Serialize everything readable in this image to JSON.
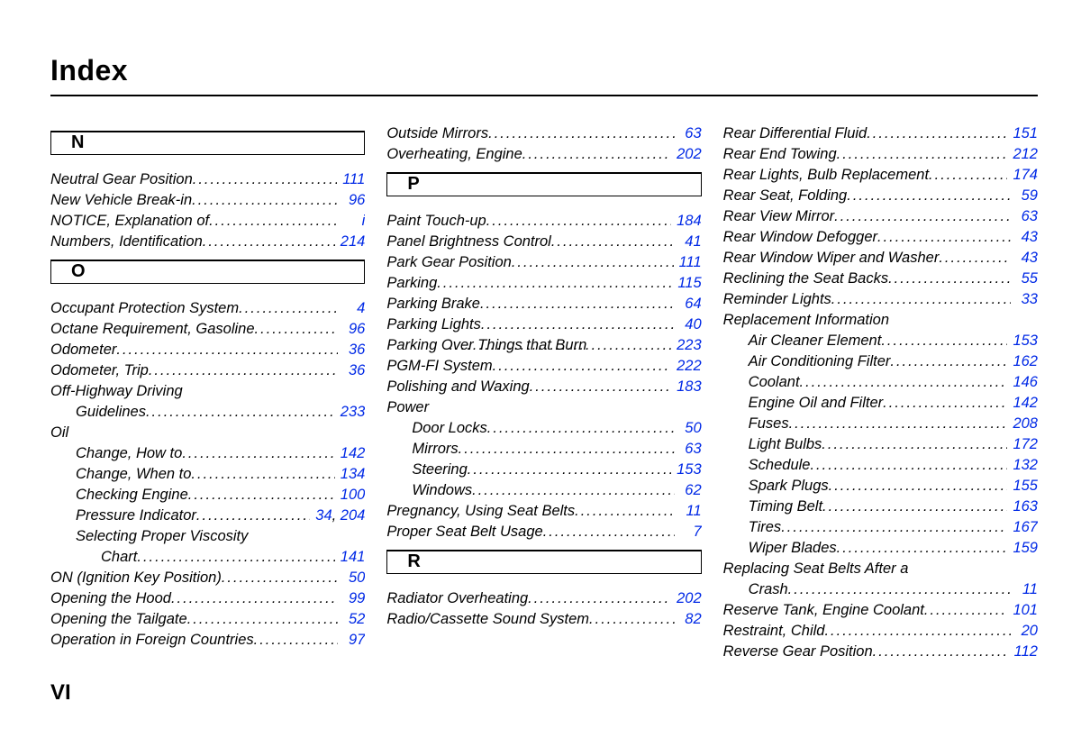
{
  "title": "Index",
  "page_footer": "VI",
  "link_color": "#0029e6",
  "text_color": "#000000",
  "font_family": "Arial",
  "font_italic": true,
  "columns_count": 3,
  "columns": [
    {
      "blocks": [
        {
          "type": "letter",
          "text": "N"
        },
        {
          "type": "entries",
          "items": [
            {
              "label": "Neutral Gear Position",
              "pages": [
                "111"
              ]
            },
            {
              "label": "New Vehicle Break-in ",
              "pages": [
                "96"
              ]
            },
            {
              "label": "NOTICE, Explanation of",
              "pages": [
                "i"
              ]
            },
            {
              "label": "Numbers, Identification",
              "pages": [
                "214"
              ]
            }
          ]
        },
        {
          "type": "letter",
          "text": "O"
        },
        {
          "type": "entries",
          "items": [
            {
              "label": "Occupant Protection System",
              "pages": [
                "4"
              ]
            },
            {
              "label": "Octane Requirement, Gasoline",
              "pages": [
                "96"
              ]
            },
            {
              "label": "Odometer",
              "pages": [
                "36"
              ]
            },
            {
              "label": "Odometer, Trip",
              "pages": [
                "36"
              ]
            },
            {
              "label": "Off-Highway Driving",
              "nopage": true
            },
            {
              "label": "Guidelines",
              "indent": 1,
              "pages": [
                "233"
              ]
            },
            {
              "label": "Oil",
              "nopage": true
            },
            {
              "label": "Change, How to",
              "indent": 1,
              "pages": [
                "142"
              ]
            },
            {
              "label": "Change, When to",
              "indent": 1,
              "pages": [
                "134"
              ]
            },
            {
              "label": "Checking Engine",
              "indent": 1,
              "pages": [
                "100"
              ]
            },
            {
              "label": "Pressure Indicator",
              "indent": 1,
              "pages": [
                "34",
                "204"
              ]
            },
            {
              "label": "Selecting Proper Viscosity",
              "indent": 1,
              "nopage": true
            },
            {
              "label": "Chart",
              "indent": 2,
              "pages": [
                "141"
              ]
            },
            {
              "label": "ON (Ignition Key Position)",
              "pages": [
                "50"
              ]
            },
            {
              "label": "Opening the Hood ",
              "pages": [
                "99"
              ]
            },
            {
              "label": "Opening the Tailgate",
              "pages": [
                "52"
              ]
            },
            {
              "label": "Operation in Foreign Countries",
              "pages": [
                "97"
              ]
            }
          ]
        }
      ]
    },
    {
      "blocks": [
        {
          "type": "entries",
          "items": [
            {
              "label": "Outside Mirrors",
              "pages": [
                "63"
              ]
            },
            {
              "label": "Overheating, Engine",
              "pages": [
                "202"
              ]
            }
          ]
        },
        {
          "type": "letter",
          "text": "P"
        },
        {
          "type": "entries",
          "items": [
            {
              "label": "Paint Touch-up",
              "pages": [
                "184"
              ]
            },
            {
              "label": "Panel Brightness Control",
              "pages": [
                "41"
              ]
            },
            {
              "label": "Park Gear Position",
              "pages": [
                "111"
              ]
            },
            {
              "label": "Parking",
              "pages": [
                "115"
              ]
            },
            {
              "label": "Parking Brake",
              "pages": [
                "64"
              ]
            },
            {
              "label": "Parking Lights",
              "pages": [
                "40"
              ]
            },
            {
              "label": "Parking Over Things that Burn",
              "trunc": true,
              "pages": [
                "223"
              ]
            },
            {
              "label": "PGM-FI System",
              "pages": [
                "222"
              ]
            },
            {
              "label": "Polishing and Waxing",
              "pages": [
                "183"
              ]
            },
            {
              "label": "Power",
              "nopage": true
            },
            {
              "label": "Door Locks",
              "indent": 1,
              "pages": [
                "50"
              ]
            },
            {
              "label": "Mirrors",
              "indent": 1,
              "pages": [
                "63"
              ]
            },
            {
              "label": "Steering",
              "indent": 1,
              "pages": [
                "153"
              ]
            },
            {
              "label": "Windows",
              "indent": 1,
              "pages": [
                "62"
              ]
            },
            {
              "label": "Pregnancy, Using Seat Belts",
              "pages": [
                "11"
              ]
            },
            {
              "label": "Proper Seat Belt Usage",
              "pages": [
                "7"
              ]
            }
          ]
        },
        {
          "type": "letter",
          "text": "R"
        },
        {
          "type": "entries",
          "items": [
            {
              "label": "Radiator Overheating",
              "pages": [
                "202"
              ]
            },
            {
              "label": "Radio/Cassette Sound System",
              "pages": [
                "82"
              ]
            }
          ]
        }
      ]
    },
    {
      "blocks": [
        {
          "type": "entries",
          "items": [
            {
              "label": "Rear Differential Fluid",
              "pages": [
                "151"
              ]
            },
            {
              "label": "Rear End Towing",
              "pages": [
                "212"
              ]
            },
            {
              "label": "Rear Lights, Bulb Replacement",
              "pages": [
                "174"
              ]
            },
            {
              "label": "Rear Seat, Folding",
              "pages": [
                "59"
              ]
            },
            {
              "label": "Rear View Mirror",
              "pages": [
                "63"
              ]
            },
            {
              "label": "Rear Window Defogger",
              "pages": [
                "43"
              ]
            },
            {
              "label": "Rear Window Wiper and Washer",
              "pages": [
                "43"
              ]
            },
            {
              "label": "Reclining the Seat Backs",
              "pages": [
                "55"
              ]
            },
            {
              "label": "Reminder Lights",
              "pages": [
                "33"
              ]
            },
            {
              "label": "Replacement Information",
              "nopage": true
            },
            {
              "label": "Air Cleaner Element",
              "indent": 1,
              "pages": [
                "153"
              ]
            },
            {
              "label": "Air Conditioning Filter",
              "indent": 1,
              "pages": [
                "162"
              ]
            },
            {
              "label": "Coolant",
              "indent": 1,
              "pages": [
                "146"
              ]
            },
            {
              "label": "Engine Oil and Filter",
              "indent": 1,
              "pages": [
                "142"
              ]
            },
            {
              "label": "Fuses",
              "indent": 1,
              "pages": [
                "208"
              ]
            },
            {
              "label": "Light Bulbs",
              "indent": 1,
              "pages": [
                "172"
              ]
            },
            {
              "label": "Schedule",
              "indent": 1,
              "pages": [
                "132"
              ]
            },
            {
              "label": "Spark Plugs",
              "indent": 1,
              "pages": [
                "155"
              ]
            },
            {
              "label": "Timing Belt",
              "indent": 1,
              "pages": [
                "163"
              ]
            },
            {
              "label": "Tires",
              "indent": 1,
              "pages": [
                "167"
              ]
            },
            {
              "label": "Wiper Blades",
              "indent": 1,
              "pages": [
                "159"
              ]
            },
            {
              "label": "Replacing Seat Belts After a",
              "nopage": true
            },
            {
              "label": "Crash",
              "indent": 1,
              "pages": [
                "11"
              ]
            },
            {
              "label": "Reserve Tank, Engine Coolant",
              "pages": [
                "101"
              ]
            },
            {
              "label": "Restraint, Child",
              "pages": [
                "20"
              ]
            },
            {
              "label": "Reverse Gear Position",
              "pages": [
                "112"
              ]
            }
          ]
        }
      ]
    }
  ]
}
